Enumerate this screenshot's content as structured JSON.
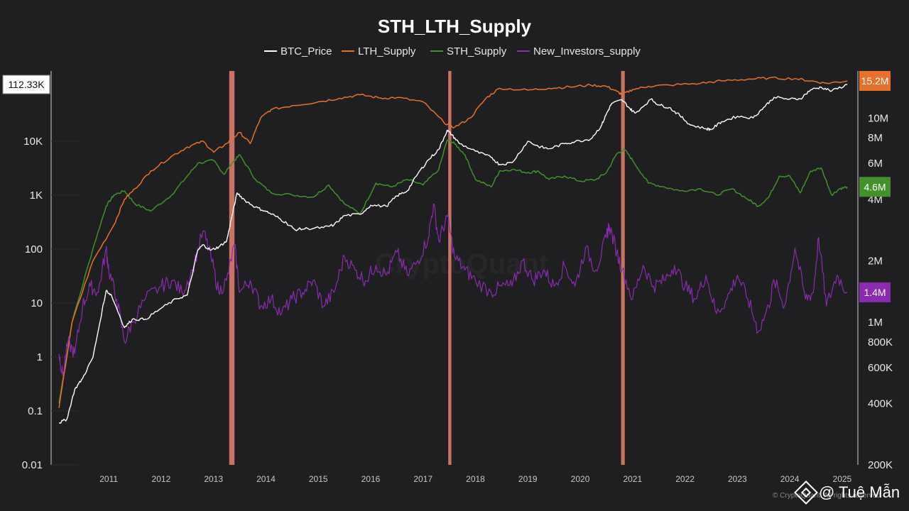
{
  "chart_data": {
    "type": "line",
    "title": "STH_LTH_Supply",
    "legend_position": "top-center",
    "grid": false,
    "x_ticks": [
      "2011",
      "2012",
      "2013",
      "2014",
      "2015",
      "2016",
      "2017",
      "2018",
      "2019",
      "2020",
      "2021",
      "2022",
      "2023",
      "2024",
      "2025"
    ],
    "x_range": [
      2010.4,
      2025.8
    ],
    "left_axis": {
      "scale": "log",
      "range": [
        0.01,
        200000
      ],
      "ticks": [
        {
          "value": 0.01,
          "label": "0.01"
        },
        {
          "value": 0.1,
          "label": "0.1"
        },
        {
          "value": 1,
          "label": "1"
        },
        {
          "value": 10,
          "label": "10"
        },
        {
          "value": 100,
          "label": "100"
        },
        {
          "value": 1000,
          "label": "1K"
        },
        {
          "value": 10000,
          "label": "10K"
        }
      ],
      "current_value_label": "112.33K"
    },
    "right_axis": {
      "scale": "log",
      "range": [
        200000,
        17000000
      ],
      "ticks": [
        {
          "value": 200000,
          "label": "200K"
        },
        {
          "value": 400000,
          "label": "400K"
        },
        {
          "value": 600000,
          "label": "600K"
        },
        {
          "value": 800000,
          "label": "800K"
        },
        {
          "value": 1000000,
          "label": "1M"
        },
        {
          "value": 2000000,
          "label": "2M"
        },
        {
          "value": 4000000,
          "label": "4M"
        },
        {
          "value": 6000000,
          "label": "6M"
        },
        {
          "value": 8000000,
          "label": "8M"
        },
        {
          "value": 10000000,
          "label": "10M"
        }
      ]
    },
    "series": [
      {
        "name": "BTC_Price",
        "color": "#ffffff",
        "axis": "left",
        "stroke_width": 1.4,
        "end_label": "",
        "x": [
          2010.55,
          2010.7,
          2010.85,
          2011.0,
          2011.2,
          2011.45,
          2011.55,
          2011.8,
          2011.95,
          2012.2,
          2012.5,
          2012.8,
          2013.0,
          2013.2,
          2013.3,
          2013.45,
          2013.6,
          2013.75,
          2013.85,
          2013.95,
          2014.1,
          2014.3,
          2014.5,
          2014.7,
          2014.9,
          2015.05,
          2015.3,
          2015.6,
          2015.8,
          2016.0,
          2016.3,
          2016.5,
          2016.8,
          2017.0,
          2017.2,
          2017.4,
          2017.6,
          2017.8,
          2017.96,
          2018.05,
          2018.2,
          2018.5,
          2018.8,
          2018.96,
          2019.2,
          2019.5,
          2019.7,
          2019.9,
          2020.2,
          2020.4,
          2020.7,
          2020.9,
          2021.0,
          2021.1,
          2021.3,
          2021.45,
          2021.55,
          2021.85,
          2022.0,
          2022.2,
          2022.4,
          2022.6,
          2022.9,
          2023.0,
          2023.2,
          2023.5,
          2023.8,
          2024.0,
          2024.2,
          2024.5,
          2024.7,
          2024.9,
          2025.1,
          2025.3,
          2025.6
        ],
        "y": [
          0.06,
          0.07,
          0.25,
          0.4,
          1.0,
          17,
          14,
          3.5,
          5,
          5,
          8,
          12,
          14,
          95,
          120,
          95,
          110,
          140,
          400,
          1100,
          800,
          600,
          500,
          400,
          300,
          230,
          240,
          250,
          280,
          420,
          440,
          650,
          620,
          970,
          1200,
          2500,
          4500,
          7000,
          16000,
          13000,
          9000,
          6500,
          5000,
          3700,
          4000,
          10000,
          8000,
          7200,
          9000,
          9800,
          11000,
          19000,
          32000,
          50000,
          58000,
          40000,
          33000,
          60000,
          47000,
          42000,
          30000,
          20000,
          17000,
          16500,
          23000,
          29000,
          27000,
          42000,
          65000,
          60000,
          61000,
          90000,
          100000,
          85000,
          112330
        ]
      },
      {
        "name": "LTH_Supply",
        "color": "#e8702a",
        "axis": "right",
        "stroke_width": 1.5,
        "end_label": "15.2M",
        "x": [
          2010.55,
          2010.8,
          2011.2,
          2011.6,
          2011.8,
          2012.0,
          2012.3,
          2012.7,
          2013.0,
          2013.3,
          2013.5,
          2013.75,
          2014.0,
          2014.2,
          2014.4,
          2014.6,
          2015.0,
          2015.5,
          2015.9,
          2016.3,
          2016.7,
          2017.0,
          2017.5,
          2017.9,
          2018.1,
          2018.4,
          2018.7,
          2018.96,
          2019.5,
          2019.9,
          2020.3,
          2020.7,
          2021.0,
          2021.2,
          2021.3,
          2021.5,
          2021.8,
          2022.2,
          2022.8,
          2023.2,
          2023.7,
          2024.1,
          2024.6,
          2024.9,
          2025.2,
          2025.6
        ],
        "y": [
          380000,
          1000000,
          2000000,
          3000000,
          4000000,
          4500000,
          5500000,
          6500000,
          7200000,
          7700000,
          6800000,
          7500000,
          8500000,
          7500000,
          10000000,
          11000000,
          11500000,
          12000000,
          12500000,
          13000000,
          12500000,
          12600000,
          12000000,
          9500000,
          9000000,
          10000000,
          12500000,
          14000000,
          13700000,
          14000000,
          14200000,
          14500000,
          14300000,
          13500000,
          13000000,
          13800000,
          14300000,
          14500000,
          14800000,
          15200000,
          15500000,
          15700000,
          15600000,
          15200000,
          14800000,
          15200000
        ]
      },
      {
        "name": "STH_Supply",
        "color": "#43912b",
        "axis": "right",
        "stroke_width": 1.5,
        "end_label": "4.6M",
        "x": [
          2010.55,
          2010.8,
          2011.2,
          2011.45,
          2011.6,
          2011.8,
          2012.0,
          2012.3,
          2012.7,
          2013.0,
          2013.2,
          2013.5,
          2013.7,
          2013.85,
          2014.0,
          2014.3,
          2014.6,
          2015.0,
          2015.4,
          2015.7,
          2016.0,
          2016.3,
          2016.6,
          2016.9,
          2017.2,
          2017.5,
          2017.8,
          2017.96,
          2018.1,
          2018.3,
          2018.5,
          2018.8,
          2018.96,
          2019.2,
          2019.5,
          2019.7,
          2019.9,
          2020.2,
          2020.5,
          2020.8,
          2021.0,
          2021.2,
          2021.35,
          2021.5,
          2021.8,
          2022.1,
          2022.4,
          2022.8,
          2023.1,
          2023.4,
          2023.7,
          2023.9,
          2024.1,
          2024.3,
          2024.5,
          2024.7,
          2024.9,
          2025.1,
          2025.3,
          2025.45,
          2025.6
        ],
        "y": [
          400000,
          1000000,
          2300000,
          3700000,
          4200000,
          4400000,
          3800000,
          3500000,
          4200000,
          5200000,
          6000000,
          6200000,
          5300000,
          6000000,
          6600000,
          5000000,
          4300000,
          4200000,
          4100000,
          4700000,
          3800000,
          3400000,
          4800000,
          4600000,
          5000000,
          4700000,
          5600000,
          7800000,
          7500000,
          6600000,
          5000000,
          4600000,
          5500000,
          5600000,
          5400000,
          5500000,
          5000000,
          5200000,
          4900000,
          5000000,
          5400000,
          6700000,
          7000000,
          6200000,
          4800000,
          4600000,
          4400000,
          4500000,
          4200000,
          4500000,
          4000000,
          3700000,
          4100000,
          5200000,
          5200000,
          4300000,
          5500000,
          5700000,
          4200000,
          4500000,
          4600000
        ]
      },
      {
        "name": "New_Investors_supply",
        "color": "#8b2bb0",
        "axis": "right",
        "stroke_width": 1.2,
        "end_label": "1.4M",
        "x": [
          2010.55,
          2010.62,
          2010.72,
          2010.85,
          2011.0,
          2011.15,
          2011.3,
          2011.45,
          2011.5,
          2011.65,
          2011.8,
          2011.95,
          2012.2,
          2012.5,
          2012.7,
          2012.9,
          2013.1,
          2013.3,
          2013.45,
          2013.6,
          2013.75,
          2013.9,
          2014.0,
          2014.2,
          2014.4,
          2014.6,
          2014.8,
          2015.0,
          2015.2,
          2015.4,
          2015.6,
          2015.8,
          2016.0,
          2016.2,
          2016.4,
          2016.6,
          2016.8,
          2017.0,
          2017.2,
          2017.4,
          2017.6,
          2017.7,
          2017.8,
          2017.96,
          2018.1,
          2018.3,
          2018.5,
          2018.8,
          2019.0,
          2019.2,
          2019.4,
          2019.6,
          2019.8,
          2020.0,
          2020.2,
          2020.4,
          2020.6,
          2020.8,
          2021.0,
          2021.05,
          2021.2,
          2021.3,
          2021.5,
          2021.7,
          2021.9,
          2022.1,
          2022.3,
          2022.5,
          2022.7,
          2022.9,
          2023.1,
          2023.3,
          2023.5,
          2023.7,
          2023.9,
          2024.1,
          2024.2,
          2024.4,
          2024.6,
          2024.8,
          2024.95,
          2025.05,
          2025.2,
          2025.4,
          2025.6
        ],
        "y": [
          700000,
          550000,
          800000,
          700000,
          1200000,
          1500000,
          1400000,
          2300000,
          1800000,
          1300000,
          800000,
          1000000,
          1300000,
          1500000,
          1600000,
          1400000,
          1800000,
          2800000,
          2100000,
          1400000,
          1600000,
          2400000,
          1400000,
          1600000,
          1200000,
          1300000,
          1100000,
          1300000,
          1400000,
          1600000,
          1200000,
          1400000,
          2100000,
          1800000,
          1600000,
          1900000,
          1700000,
          2200000,
          1700000,
          2000000,
          2600000,
          3800000,
          2500000,
          3300000,
          2100000,
          1800000,
          1600000,
          1400000,
          1500000,
          1500000,
          2000000,
          1600000,
          1800000,
          1500000,
          1900000,
          1500000,
          2300000,
          1800000,
          2600000,
          3000000,
          2200000,
          1800000,
          1300000,
          1900000,
          1500000,
          1600000,
          1900000,
          1500000,
          1300000,
          1700000,
          1100000,
          1300000,
          1700000,
          1300000,
          900000,
          1200000,
          1600000,
          1200000,
          2300000,
          1300000,
          1400000,
          2600000,
          1200000,
          1700000,
          1400000
        ]
      }
    ],
    "highlight_bands": [
      {
        "x_start": 2013.8,
        "x_end": 2013.9
      },
      {
        "x_start": 2017.98,
        "x_end": 2018.04
      },
      {
        "x_start": 2021.28,
        "x_end": 2021.35
      }
    ]
  },
  "watermark": {
    "background_text": "CryptoQuant",
    "credit": "© CryptoQuant. All rights reserved",
    "signature": "@ Tuệ Mẫn"
  },
  "colors": {
    "background": "#1f1f21",
    "axis": "#cfcfcf",
    "badge_price_bg": "#ffffff",
    "badge_price_text": "#111111",
    "badge_text": "#ffffff",
    "band": "#e68270"
  }
}
